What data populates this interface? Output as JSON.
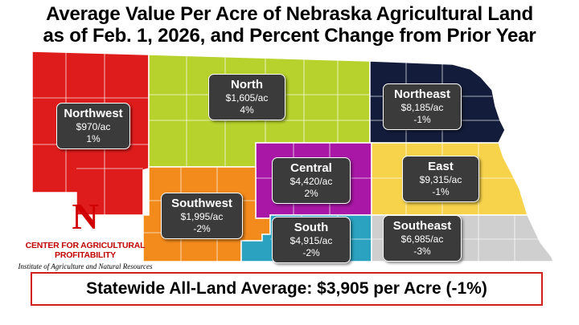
{
  "title": {
    "line1": "Average Value Per Acre of Nebraska Agricultural Land",
    "line2": "as of Feb. 1, 2026, and Percent Change from Prior Year"
  },
  "colors": {
    "northwest": "#df1c1c",
    "north": "#b7d22c",
    "northeast": "#131c3a",
    "central": "#a817a6",
    "east": "#f6d34b",
    "southwest": "#f28a1c",
    "south": "#2aa2c0",
    "southeast": "#cfcfcf",
    "label_bg": "#3b3b3b",
    "logo_red": "#d00000"
  },
  "regions": [
    {
      "key": "northwest",
      "name": "Northwest",
      "value": "$970/ac",
      "change": "1%"
    },
    {
      "key": "north",
      "name": "North",
      "value": "$1,605/ac",
      "change": "4%"
    },
    {
      "key": "northeast",
      "name": "Northeast",
      "value": "$8,185/ac",
      "change": "-1%"
    },
    {
      "key": "central",
      "name": "Central",
      "value": "$4,420/ac",
      "change": "2%"
    },
    {
      "key": "east",
      "name": "East",
      "value": "$9,315/ac",
      "change": "-1%"
    },
    {
      "key": "southwest",
      "name": "Southwest",
      "value": "$1,995/ac",
      "change": "-2%"
    },
    {
      "key": "south",
      "name": "South",
      "value": "$4,915/ac",
      "change": "-2%"
    },
    {
      "key": "southeast",
      "name": "Southeast",
      "value": "$6,985/ac",
      "change": "-3%"
    }
  ],
  "logo": {
    "mark": "N",
    "center_name": "CENTER FOR AGRICULTURAL PROFITABILITY",
    "institute": "Institute of Agriculture and Natural Resources"
  },
  "statewide": "Statewide All-Land Average: $3,905 per Acre (-1%)"
}
